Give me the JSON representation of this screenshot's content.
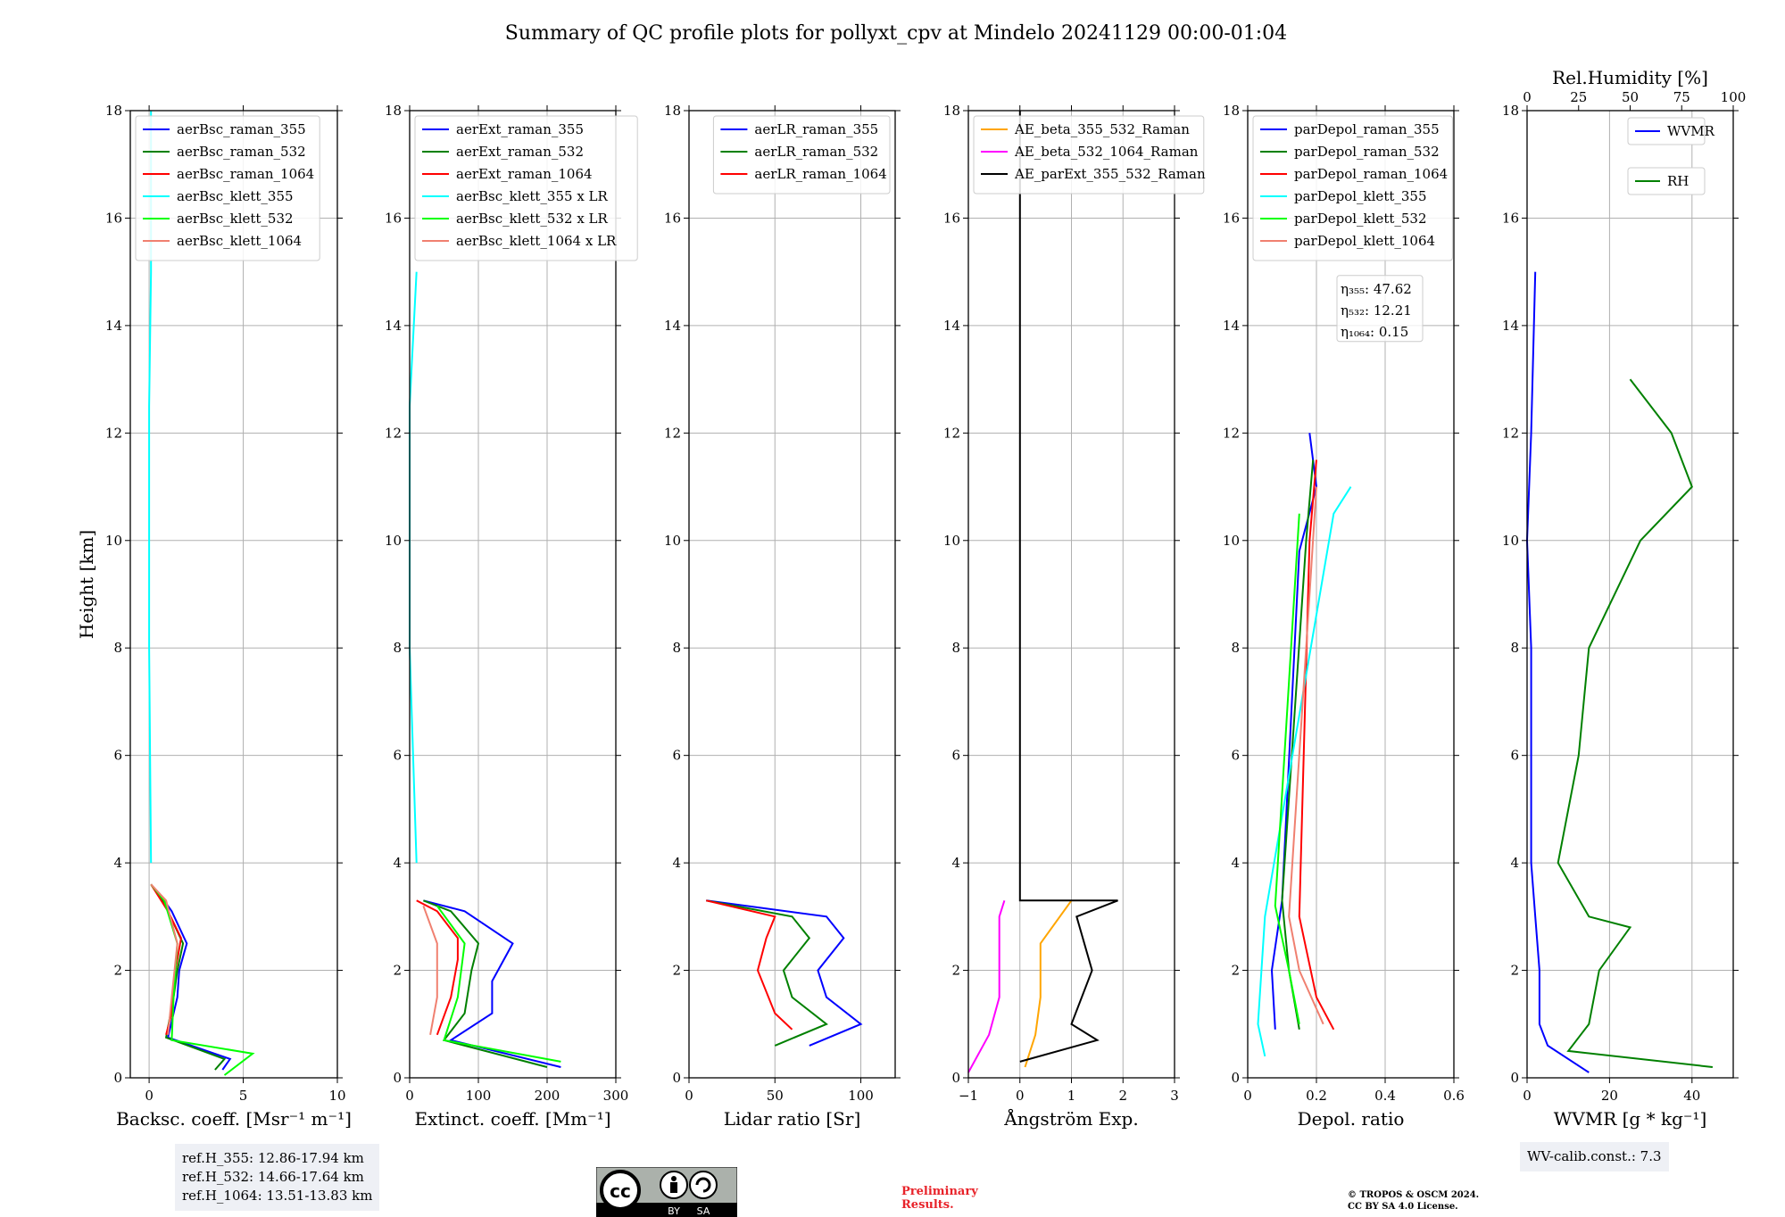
{
  "title": "Summary of QC profile plots for pollyxt_cpv at Mindelo 20241129 00:00-01:04",
  "y_axis_label": "Height [km]",
  "chart_data": [
    {
      "type": "line",
      "xlabel": "Backsc. coeff. [Msr⁻¹ m⁻¹]",
      "xlim": [
        -1,
        10
      ],
      "ylim": [
        0,
        18
      ],
      "xticks": [
        0,
        5,
        10
      ],
      "yticks": [
        0,
        2,
        4,
        6,
        8,
        10,
        12,
        14,
        16,
        18
      ],
      "legend": "top-left",
      "series": [
        {
          "name": "aerBsc_raman_355",
          "color": "#0000ff",
          "points": [
            [
              3.9,
              0.15
            ],
            [
              4.3,
              0.35
            ],
            [
              1.0,
              0.75
            ],
            [
              1.5,
              1.5
            ],
            [
              1.6,
              2.0
            ],
            [
              2.0,
              2.5
            ],
            [
              1.2,
              3.1
            ],
            [
              0.8,
              3.3
            ],
            [
              0.1,
              3.6
            ]
          ]
        },
        {
          "name": "aerBsc_raman_532",
          "color": "#008000",
          "points": [
            [
              3.5,
              0.15
            ],
            [
              4.0,
              0.35
            ],
            [
              0.9,
              0.75
            ],
            [
              1.3,
              1.5
            ],
            [
              1.5,
              2.0
            ],
            [
              1.8,
              2.5
            ],
            [
              1.0,
              3.1
            ],
            [
              0.7,
              3.3
            ],
            [
              0.1,
              3.6
            ]
          ]
        },
        {
          "name": "aerBsc_raman_1064",
          "color": "#ff0000",
          "points": [
            [
              0.9,
              0.8
            ],
            [
              1.2,
              1.2
            ],
            [
              1.4,
              2.0
            ],
            [
              1.7,
              2.6
            ],
            [
              1.0,
              3.1
            ],
            [
              0.1,
              3.6
            ]
          ]
        },
        {
          "name": "aerBsc_klett_355",
          "color": "#00ffff",
          "points": [
            [
              0.1,
              4.0
            ],
            [
              0.0,
              8.0
            ],
            [
              0.0,
              9.2
            ],
            [
              0.0,
              12.5
            ],
            [
              0.1,
              15.0
            ],
            [
              0.1,
              18.0
            ]
          ]
        },
        {
          "name": "aerBsc_klett_532",
          "color": "#00ff00",
          "points": [
            [
              4.0,
              0.05
            ],
            [
              5.5,
              0.45
            ],
            [
              1.2,
              0.7
            ],
            [
              1.3,
              1.5
            ],
            [
              1.5,
              2.5
            ],
            [
              0.8,
              3.3
            ],
            [
              0.1,
              3.6
            ]
          ]
        },
        {
          "name": "aerBsc_klett_1064",
          "color": "#f08070",
          "points": [
            [
              1.0,
              0.8
            ],
            [
              1.2,
              1.5
            ],
            [
              1.5,
              2.5
            ],
            [
              0.9,
              3.3
            ],
            [
              0.1,
              3.6
            ]
          ]
        }
      ]
    },
    {
      "type": "line",
      "xlabel": "Extinct. coeff. [Mm⁻¹]",
      "xlim": [
        0,
        300
      ],
      "ylim": [
        0,
        18
      ],
      "xticks": [
        0,
        100,
        200,
        300
      ],
      "yticks": [
        0,
        2,
        4,
        6,
        8,
        10,
        12,
        14,
        16,
        18
      ],
      "legend": "top-left",
      "series": [
        {
          "name": "aerExt_raman_355",
          "color": "#0000ff",
          "points": [
            [
              220,
              0.2
            ],
            [
              60,
              0.7
            ],
            [
              120,
              1.2
            ],
            [
              120,
              1.8
            ],
            [
              150,
              2.5
            ],
            [
              80,
              3.1
            ],
            [
              20,
              3.3
            ]
          ]
        },
        {
          "name": "aerExt_raman_532",
          "color": "#008000",
          "points": [
            [
              200,
              0.2
            ],
            [
              50,
              0.7
            ],
            [
              80,
              1.2
            ],
            [
              90,
              2.0
            ],
            [
              100,
              2.5
            ],
            [
              60,
              3.1
            ],
            [
              20,
              3.3
            ]
          ]
        },
        {
          "name": "aerExt_raman_1064",
          "color": "#ff0000",
          "points": [
            [
              40,
              0.8
            ],
            [
              60,
              1.5
            ],
            [
              70,
              2.2
            ],
            [
              70,
              2.6
            ],
            [
              40,
              3.1
            ],
            [
              10,
              3.3
            ]
          ]
        },
        {
          "name": "aerBsc_klett_355 x LR",
          "color": "#00ffff",
          "points": [
            [
              10,
              4.0
            ],
            [
              0,
              8.0
            ],
            [
              0,
              12.5
            ],
            [
              10,
              15.0
            ]
          ]
        },
        {
          "name": "aerBsc_klett_532 x LR",
          "color": "#00ff00",
          "points": [
            [
              220,
              0.3
            ],
            [
              50,
              0.7
            ],
            [
              70,
              1.5
            ],
            [
              80,
              2.5
            ],
            [
              40,
              3.2
            ]
          ]
        },
        {
          "name": "aerBsc_klett_1064 x LR",
          "color": "#f08070",
          "points": [
            [
              30,
              0.8
            ],
            [
              40,
              1.5
            ],
            [
              40,
              2.5
            ],
            [
              20,
              3.2
            ]
          ]
        }
      ]
    },
    {
      "type": "line",
      "xlabel": "Lidar ratio [Sr]",
      "xlim": [
        0,
        120
      ],
      "ylim": [
        0,
        18
      ],
      "xticks": [
        0,
        50,
        100
      ],
      "yticks": [
        0,
        2,
        4,
        6,
        8,
        10,
        12,
        14,
        16,
        18
      ],
      "legend": "top-right",
      "series": [
        {
          "name": "aerLR_raman_355",
          "color": "#0000ff",
          "points": [
            [
              70,
              0.6
            ],
            [
              100,
              1.0
            ],
            [
              80,
              1.5
            ],
            [
              75,
              2.0
            ],
            [
              90,
              2.6
            ],
            [
              80,
              3.0
            ],
            [
              10,
              3.3
            ]
          ]
        },
        {
          "name": "aerLR_raman_532",
          "color": "#008000",
          "points": [
            [
              50,
              0.6
            ],
            [
              80,
              1.0
            ],
            [
              60,
              1.5
            ],
            [
              55,
              2.0
            ],
            [
              70,
              2.6
            ],
            [
              60,
              3.0
            ],
            [
              10,
              3.3
            ]
          ]
        },
        {
          "name": "aerLR_raman_1064",
          "color": "#ff0000",
          "points": [
            [
              60,
              0.9
            ],
            [
              50,
              1.2
            ],
            [
              40,
              2.0
            ],
            [
              45,
              2.6
            ],
            [
              50,
              3.0
            ],
            [
              10,
              3.3
            ]
          ]
        }
      ]
    },
    {
      "type": "line",
      "xlabel": "Ångström Exp.",
      "xlim": [
        -1,
        3
      ],
      "ylim": [
        0,
        18
      ],
      "xticks": [
        -1,
        0,
        1,
        2,
        3
      ],
      "yticks": [
        0,
        2,
        4,
        6,
        8,
        10,
        12,
        14,
        16,
        18
      ],
      "legend": "top-left",
      "series": [
        {
          "name": "AE_beta_355_532_Raman",
          "color": "#ffa500",
          "points": [
            [
              0.1,
              0.2
            ],
            [
              0.3,
              0.8
            ],
            [
              0.4,
              1.5
            ],
            [
              0.4,
              2.5
            ],
            [
              1.0,
              3.3
            ]
          ]
        },
        {
          "name": "AE_beta_532_1064_Raman",
          "color": "#ff00ff",
          "points": [
            [
              -1.0,
              0.1
            ],
            [
              -0.6,
              0.8
            ],
            [
              -0.4,
              1.5
            ],
            [
              -0.4,
              3.0
            ],
            [
              -0.3,
              3.3
            ]
          ]
        },
        {
          "name": "AE_parExt_355_532_Raman",
          "color": "#000000",
          "points": [
            [
              0.0,
              0.3
            ],
            [
              1.5,
              0.7
            ],
            [
              1.0,
              1.0
            ],
            [
              1.4,
              2.0
            ],
            [
              1.1,
              3.0
            ],
            [
              1.9,
              3.3
            ],
            [
              0.0,
              3.3
            ],
            [
              0.0,
              18.0
            ]
          ]
        }
      ]
    },
    {
      "type": "line",
      "xlabel": "Depol. ratio",
      "xlim": [
        0,
        0.6
      ],
      "ylim": [
        0,
        18
      ],
      "xticks": [
        0.0,
        0.2,
        0.4,
        0.6
      ],
      "yticks": [
        0,
        2,
        4,
        6,
        8,
        10,
        12,
        14,
        16,
        18
      ],
      "legend": "top-left",
      "annotation": [
        "η₃₅₅: 47.62",
        "η₅₃₂: 12.21",
        "η₁₀₆₄: 0.15"
      ],
      "series": [
        {
          "name": "parDepol_raman_355",
          "color": "#0000ff",
          "points": [
            [
              0.08,
              0.9
            ],
            [
              0.07,
              2.0
            ],
            [
              0.1,
              3.3
            ],
            [
              0.15,
              9.8
            ],
            [
              0.2,
              11.0
            ],
            [
              0.18,
              12.0
            ]
          ]
        },
        {
          "name": "parDepol_raman_532",
          "color": "#008000",
          "points": [
            [
              0.15,
              0.9
            ],
            [
              0.12,
              2.0
            ],
            [
              0.1,
              3.3
            ],
            [
              0.17,
              10.0
            ],
            [
              0.19,
              11.5
            ]
          ]
        },
        {
          "name": "parDepol_raman_1064",
          "color": "#ff0000",
          "points": [
            [
              0.25,
              0.9
            ],
            [
              0.2,
              1.5
            ],
            [
              0.15,
              3.0
            ],
            [
              0.18,
              10.0
            ],
            [
              0.2,
              11.5
            ]
          ]
        },
        {
          "name": "parDepol_klett_355",
          "color": "#00ffff",
          "points": [
            [
              0.05,
              0.4
            ],
            [
              0.03,
              1.0
            ],
            [
              0.05,
              3.0
            ],
            [
              0.25,
              10.5
            ],
            [
              0.3,
              11.0
            ]
          ]
        },
        {
          "name": "parDepol_klett_532",
          "color": "#00ff00",
          "points": [
            [
              0.15,
              1.0
            ],
            [
              0.12,
              2.0
            ],
            [
              0.08,
              3.2
            ],
            [
              0.15,
              10.5
            ]
          ]
        },
        {
          "name": "parDepol_klett_1064",
          "color": "#f08070",
          "points": [
            [
              0.22,
              1.0
            ],
            [
              0.15,
              2.0
            ],
            [
              0.12,
              3.0
            ],
            [
              0.2,
              11.0
            ]
          ]
        }
      ]
    },
    {
      "type": "line",
      "xlabel": "WVMR [g * kg⁻¹]",
      "top_xlabel": "Rel.Humidity [%]",
      "xlim": [
        0,
        50
      ],
      "ylim": [
        0,
        18
      ],
      "xticks": [
        0,
        20,
        40
      ],
      "top_xticks": [
        0,
        25,
        50,
        75,
        100
      ],
      "yticks": [
        0,
        2,
        4,
        6,
        8,
        10,
        12,
        14,
        16,
        18
      ],
      "legend": "top-right",
      "series": [
        {
          "name": "WVMR",
          "color": "#0000ff",
          "points": [
            [
              15,
              0.1
            ],
            [
              5,
              0.6
            ],
            [
              3,
              1.0
            ],
            [
              3,
              2.0
            ],
            [
              2,
              3.0
            ],
            [
              1,
              4.0
            ],
            [
              1,
              8.0
            ],
            [
              0,
              10.0
            ],
            [
              1,
              12.0
            ],
            [
              2,
              15.0
            ]
          ]
        },
        {
          "name": "RH",
          "color": "#008000",
          "units": "%",
          "points": [
            [
              90,
              0.2
            ],
            [
              20,
              0.5
            ],
            [
              30,
              1.0
            ],
            [
              35,
              2.0
            ],
            [
              50,
              2.8
            ],
            [
              30,
              3.0
            ],
            [
              15,
              4.0
            ],
            [
              25,
              6.0
            ],
            [
              30,
              8.0
            ],
            [
              55,
              10.0
            ],
            [
              80,
              11.0
            ],
            [
              70,
              12.0
            ],
            [
              50,
              13.0
            ]
          ]
        }
      ]
    }
  ],
  "info_left": [
    "ref.H_355: 12.86-17.94 km",
    "ref.H_532: 14.66-17.64 km",
    "ref.H_1064: 13.51-13.83 km"
  ],
  "info_right": "WV-calib.const.: 7.3",
  "preliminary": [
    "Preliminary",
    "Results."
  ],
  "copyright": [
    "© TROPOS & OSCM 2024.",
    "CC BY SA 4.0 License."
  ],
  "cc_badge": {
    "by": "BY",
    "sa": "SA"
  }
}
